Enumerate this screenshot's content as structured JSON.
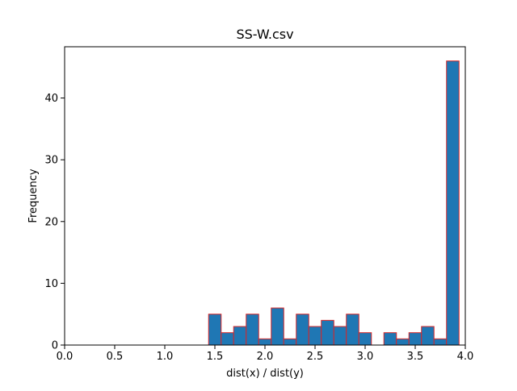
{
  "chart_data": {
    "type": "bar",
    "title": "SS-W.csv",
    "xlabel": "dist(x) / dist(y)",
    "ylabel": "Frequency",
    "xlim": [
      0.0,
      4.0
    ],
    "ylim": [
      0,
      48.3
    ],
    "xticks": [
      0.0,
      0.5,
      1.0,
      1.5,
      2.0,
      2.5,
      3.0,
      3.5,
      4.0
    ],
    "xtick_labels": [
      "0.0",
      "0.5",
      "1.0",
      "1.5",
      "2.0",
      "2.5",
      "3.0",
      "3.5",
      "4.0"
    ],
    "yticks": [
      0,
      10,
      20,
      30,
      40
    ],
    "ytick_labels": [
      "0",
      "10",
      "20",
      "30",
      "40"
    ],
    "grid": false,
    "legend": "none",
    "bar_fill": "#1f77b4",
    "bar_edge": "#d62728",
    "bins": [
      {
        "x0": 1.4375,
        "x1": 1.5625,
        "count": 5
      },
      {
        "x0": 1.5625,
        "x1": 1.6875,
        "count": 2
      },
      {
        "x0": 1.6875,
        "x1": 1.8125,
        "count": 3
      },
      {
        "x0": 1.8125,
        "x1": 1.9375,
        "count": 5
      },
      {
        "x0": 1.9375,
        "x1": 2.0625,
        "count": 1
      },
      {
        "x0": 2.0625,
        "x1": 2.1875,
        "count": 6
      },
      {
        "x0": 2.1875,
        "x1": 2.3125,
        "count": 1
      },
      {
        "x0": 2.3125,
        "x1": 2.4375,
        "count": 5
      },
      {
        "x0": 2.4375,
        "x1": 2.5625,
        "count": 3
      },
      {
        "x0": 2.5625,
        "x1": 2.6875,
        "count": 4
      },
      {
        "x0": 2.6875,
        "x1": 2.8125,
        "count": 3
      },
      {
        "x0": 2.8125,
        "x1": 2.9375,
        "count": 5
      },
      {
        "x0": 2.9375,
        "x1": 3.0625,
        "count": 2
      },
      {
        "x0": 3.0625,
        "x1": 3.1875,
        "count": 0
      },
      {
        "x0": 3.1875,
        "x1": 3.3125,
        "count": 2
      },
      {
        "x0": 3.3125,
        "x1": 3.4375,
        "count": 1
      },
      {
        "x0": 3.4375,
        "x1": 3.5625,
        "count": 2
      },
      {
        "x0": 3.5625,
        "x1": 3.6875,
        "count": 3
      },
      {
        "x0": 3.6875,
        "x1": 3.8125,
        "count": 1
      },
      {
        "x0": 3.8125,
        "x1": 3.9375,
        "count": 46
      }
    ]
  }
}
